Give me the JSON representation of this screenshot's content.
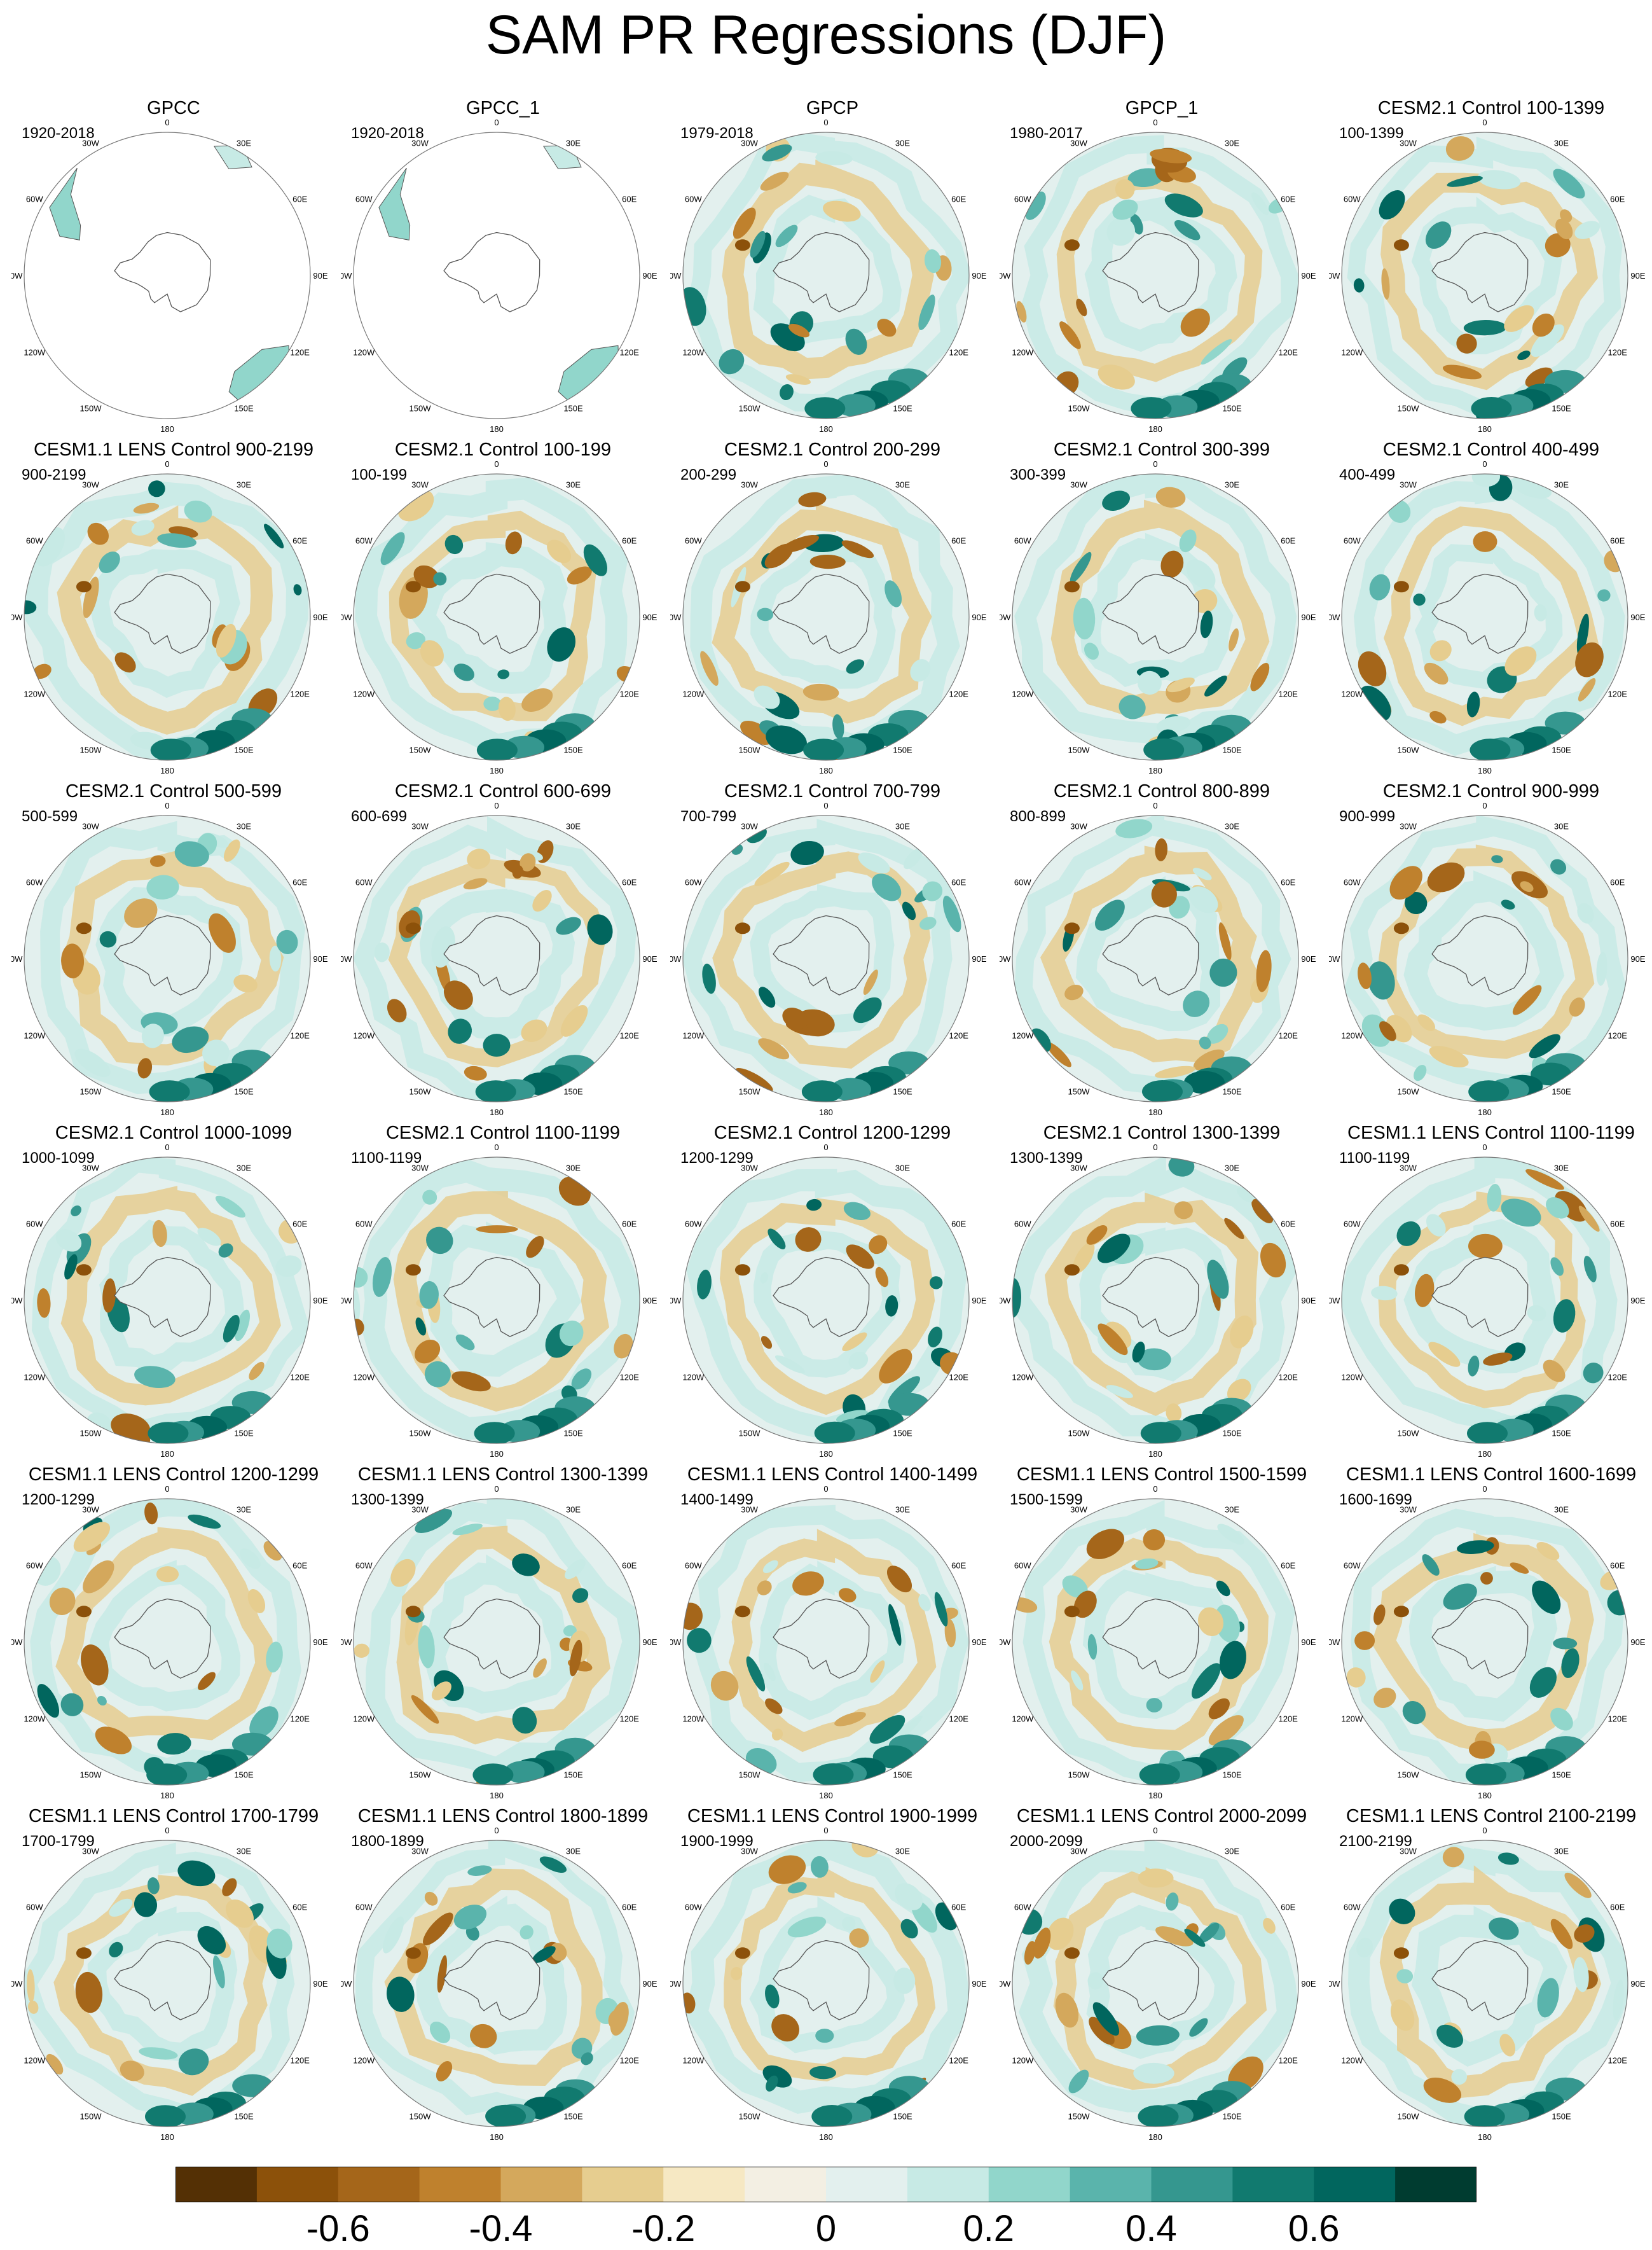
{
  "title": "SAM PR Regressions (DJF)",
  "colors": {
    "levels": [
      "#543005",
      "#8c510a",
      "#a5661a",
      "#bf812d",
      "#d4a85c",
      "#e6cd8f",
      "#f6e8c3",
      "#f3efe3",
      "#e3f0ee",
      "#c7eae5",
      "#91d6cb",
      "#5ab4ac",
      "#35978f",
      "#117a6f",
      "#01665e",
      "#003c30"
    ],
    "coast": "#555555",
    "frame": "#777777"
  },
  "colorbar": {
    "ticks": [
      "-0.6",
      "-0.4",
      "-0.2",
      "0",
      "0.2",
      "0.4",
      "0.6"
    ],
    "values": [
      -0.6,
      -0.4,
      -0.2,
      0,
      0.2,
      0.4,
      0.6
    ]
  },
  "lon_labels": [
    "0",
    "30E",
    "60E",
    "90E",
    "120E",
    "150E",
    "180",
    "150W",
    "120W",
    "90W",
    "60W",
    "30W"
  ],
  "panels": [
    {
      "title": "GPCC",
      "period": "1920-2018"
    },
    {
      "title": "GPCC_1",
      "period": "1920-2018"
    },
    {
      "title": "GPCP",
      "period": "1979-2018"
    },
    {
      "title": "GPCP_1",
      "period": "1980-2017"
    },
    {
      "title": "CESM2.1 Control 100-1399",
      "period": "100-1399"
    },
    {
      "title": "CESM1.1 LENS Control 900-2199",
      "period": "900-2199"
    },
    {
      "title": "CESM2.1 Control 100-199",
      "period": "100-199"
    },
    {
      "title": "CESM2.1 Control 200-299",
      "period": "200-299"
    },
    {
      "title": "CESM2.1 Control 300-399",
      "period": "300-399"
    },
    {
      "title": "CESM2.1 Control 400-499",
      "period": "400-499"
    },
    {
      "title": "CESM2.1 Control 500-599",
      "period": "500-599"
    },
    {
      "title": "CESM2.1 Control 600-699",
      "period": "600-699"
    },
    {
      "title": "CESM2.1 Control 700-799",
      "period": "700-799"
    },
    {
      "title": "CESM2.1 Control 800-899",
      "period": "800-899"
    },
    {
      "title": "CESM2.1 Control 900-999",
      "period": "900-999"
    },
    {
      "title": "CESM2.1 Control 1000-1099",
      "period": "1000-1099"
    },
    {
      "title": "CESM2.1 Control 1100-1199",
      "period": "1100-1199"
    },
    {
      "title": "CESM2.1 Control 1200-1299",
      "period": "1200-1299"
    },
    {
      "title": "CESM2.1 Control 1300-1399",
      "period": "1300-1399"
    },
    {
      "title": "CESM1.1 LENS Control 1100-1199",
      "period": "1100-1199"
    },
    {
      "title": "CESM1.1 LENS Control 1200-1299",
      "period": "1200-1299"
    },
    {
      "title": "CESM1.1 LENS Control 1300-1399",
      "period": "1300-1399"
    },
    {
      "title": "CESM1.1 LENS Control 1400-1499",
      "period": "1400-1499"
    },
    {
      "title": "CESM1.1 LENS Control 1500-1599",
      "period": "1500-1599"
    },
    {
      "title": "CESM1.1 LENS Control 1600-1699",
      "period": "1600-1699"
    },
    {
      "title": "CESM1.1 LENS Control 1700-1799",
      "period": "1700-1799"
    },
    {
      "title": "CESM1.1 LENS Control 1800-1899",
      "period": "1800-1899"
    },
    {
      "title": "CESM1.1 LENS Control 1900-1999",
      "period": "1900-1999"
    },
    {
      "title": "CESM1.1 LENS Control 2000-2099",
      "period": "2000-2099"
    },
    {
      "title": "CESM1.1 LENS Control 2100-2199",
      "period": "2100-2199"
    }
  ]
}
